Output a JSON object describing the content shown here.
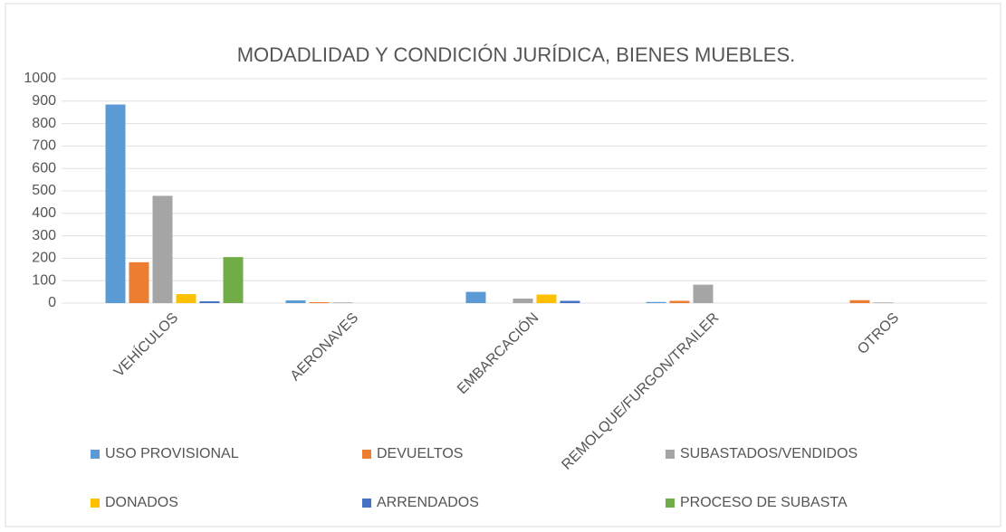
{
  "chart_data": {
    "type": "bar",
    "title": "MODADLIDAD Y CONDICIÓN JURÍDICA, BIENES MUEBLES.",
    "categories": [
      "VEHÍCULOS",
      "AERONAVES",
      "EMBARCACIÓN",
      "REMOLQUE/FURGON/TRAILER",
      "OTROS"
    ],
    "series": [
      {
        "name": "USO PROVISIONAL",
        "color": "#5b9bd5",
        "values": [
          885,
          12,
          50,
          5,
          0
        ]
      },
      {
        "name": "DEVUELTOS",
        "color": "#ed7d31",
        "values": [
          182,
          4,
          0,
          10,
          13
        ]
      },
      {
        "name": "SUBASTADOS/VENDIDOS",
        "color": "#a5a5a5",
        "values": [
          478,
          3,
          20,
          82,
          3
        ]
      },
      {
        "name": "DONADOS",
        "color": "#ffc000",
        "values": [
          40,
          0,
          38,
          0,
          0
        ]
      },
      {
        "name": "ARRENDADOS",
        "color": "#4472c4",
        "values": [
          8,
          0,
          10,
          0,
          0
        ]
      },
      {
        "name": "PROCESO DE SUBASTA",
        "color": "#70ad47",
        "values": [
          205,
          0,
          0,
          0,
          0
        ]
      }
    ],
    "ylim": [
      0,
      1000
    ],
    "yticks": [
      0,
      100,
      200,
      300,
      400,
      500,
      600,
      700,
      800,
      900,
      1000
    ],
    "grid": true,
    "legend": "bottom"
  }
}
